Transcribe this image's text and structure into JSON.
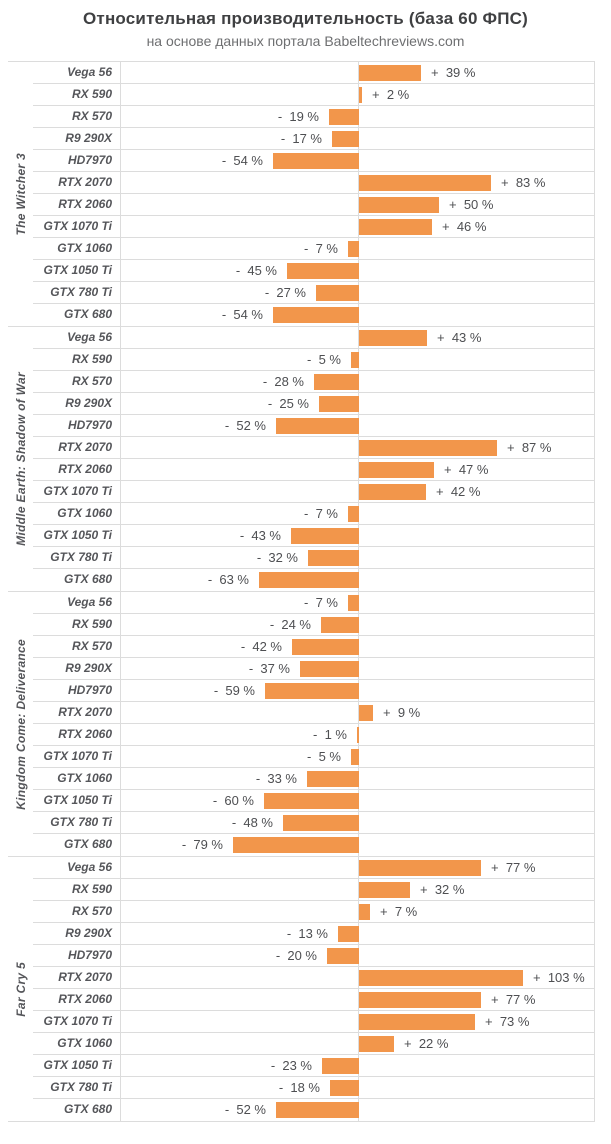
{
  "header": {
    "title": "Относительная производительность (база 60 ФПС)",
    "subtitle": "на основе данных портала Babeltechreviews.com"
  },
  "chart_data": {
    "type": "bar",
    "orientation": "horizontal",
    "title": "Относительная производительность (база 60 ФПС)",
    "subtitle": "на основе данных портала Babeltechreviews.com",
    "unit": "%",
    "baseline": 0,
    "x_range": [
      -150,
      150
    ],
    "grid": false,
    "bar_color": "#f2964b",
    "border_color": "#dcdcdc",
    "label_color": "#55565a",
    "value_color": "#4e4f52",
    "value_label_format": "+/- N %",
    "categories": [
      "Vega 56",
      "RX 590",
      "RX 570",
      "R9 290X",
      "HD7970",
      "RTX 2070",
      "RTX 2060",
      "GTX 1070 Ti",
      "GTX 1060",
      "GTX 1050 Ti",
      "GTX 780 Ti",
      "GTX 680"
    ],
    "groups": [
      {
        "game": "The Witcher 3",
        "bars": [
          {
            "gpu": "Vega 56",
            "value": 39
          },
          {
            "gpu": "RX 590",
            "value": 2
          },
          {
            "gpu": "RX 570",
            "value": -19
          },
          {
            "gpu": "R9 290X",
            "value": -17
          },
          {
            "gpu": "HD7970",
            "value": -54
          },
          {
            "gpu": "RTX 2070",
            "value": 83
          },
          {
            "gpu": "RTX 2060",
            "value": 50
          },
          {
            "gpu": "GTX 1070 Ti",
            "value": 46
          },
          {
            "gpu": "GTX 1060",
            "value": -7
          },
          {
            "gpu": "GTX 1050 Ti",
            "value": -45
          },
          {
            "gpu": "GTX 780 Ti",
            "value": -27
          },
          {
            "gpu": "GTX 680",
            "value": -54
          }
        ]
      },
      {
        "game": "Middle Earth: Shadow of War",
        "bars": [
          {
            "gpu": "Vega 56",
            "value": 43
          },
          {
            "gpu": "RX 590",
            "value": -5
          },
          {
            "gpu": "RX 570",
            "value": -28
          },
          {
            "gpu": "R9 290X",
            "value": -25
          },
          {
            "gpu": "HD7970",
            "value": -52
          },
          {
            "gpu": "RTX 2070",
            "value": 87
          },
          {
            "gpu": "RTX 2060",
            "value": 47
          },
          {
            "gpu": "GTX 1070 Ti",
            "value": 42
          },
          {
            "gpu": "GTX 1060",
            "value": -7
          },
          {
            "gpu": "GTX 1050 Ti",
            "value": -43
          },
          {
            "gpu": "GTX 780 Ti",
            "value": -32
          },
          {
            "gpu": "GTX 680",
            "value": -63
          }
        ]
      },
      {
        "game": "Kingdom Come: Deliverance",
        "bars": [
          {
            "gpu": "Vega 56",
            "value": -7
          },
          {
            "gpu": "RX 590",
            "value": -24
          },
          {
            "gpu": "RX 570",
            "value": -42
          },
          {
            "gpu": "R9 290X",
            "value": -37
          },
          {
            "gpu": "HD7970",
            "value": -59
          },
          {
            "gpu": "RTX 2070",
            "value": 9
          },
          {
            "gpu": "RTX 2060",
            "value": -1
          },
          {
            "gpu": "GTX 1070 Ti",
            "value": -5
          },
          {
            "gpu": "GTX 1060",
            "value": -33
          },
          {
            "gpu": "GTX 1050 Ti",
            "value": -60
          },
          {
            "gpu": "GTX 780 Ti",
            "value": -48
          },
          {
            "gpu": "GTX 680",
            "value": -79
          }
        ]
      },
      {
        "game": "Far Cry 5",
        "bars": [
          {
            "gpu": "Vega 56",
            "value": 77
          },
          {
            "gpu": "RX 590",
            "value": 32
          },
          {
            "gpu": "RX 570",
            "value": 7
          },
          {
            "gpu": "R9 290X",
            "value": -13
          },
          {
            "gpu": "HD7970",
            "value": -20
          },
          {
            "gpu": "RTX 2070",
            "value": 103
          },
          {
            "gpu": "RTX 2060",
            "value": 77
          },
          {
            "gpu": "GTX 1070 Ti",
            "value": 73
          },
          {
            "gpu": "GTX 1060",
            "value": 22
          },
          {
            "gpu": "GTX 1050 Ti",
            "value": -23
          },
          {
            "gpu": "GTX 780 Ti",
            "value": -18
          },
          {
            "gpu": "GTX 680",
            "value": -52
          }
        ]
      }
    ]
  }
}
